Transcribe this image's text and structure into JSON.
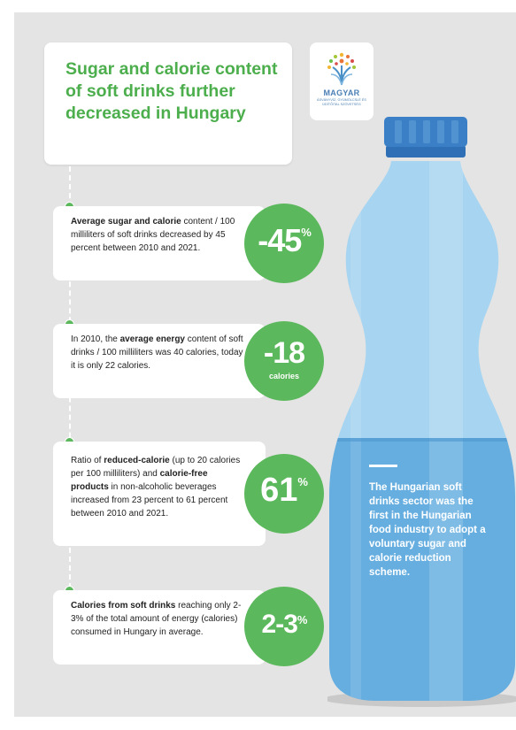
{
  "title": "Sugar and calorie content of soft drinks further decreased in Hungary",
  "logo": {
    "name": "MAGYAR",
    "subtitle": "ÁSVÁNYVÍZ, GYÜMÖLCSLÉ ÉS ÜDÍTŐITAL SZÖVETSÉG"
  },
  "stats": [
    {
      "lead_bold": "Average sugar and calorie",
      "text": " content / 100 milliliters of soft drinks decreased by 45 percent between 2010 and 2021.",
      "value": "-45",
      "unit": "%"
    },
    {
      "lead": "In 2010, the ",
      "lead_bold": "average energy",
      "text": " content of soft drinks / 100 milliliters was 40 calories, today it is only 22 calories.",
      "value": "-18",
      "unit": "calories"
    },
    {
      "lead": "Ratio of ",
      "lead_bold": "reduced-calorie",
      "text": " (up to 20 calories per 100 milliliters) and ",
      "bold2": "calorie-free products",
      "text2": " in non-alcoholic beverages increased from 23 percent to 61 percent between 2010 and 2021.",
      "value": "61",
      "unit": "%"
    },
    {
      "lead_bold": "Calories from soft drinks",
      "text": " reaching only 2-3% of the total amount of energy (calories) consumed in Hungary in average.",
      "value": "2-3",
      "unit": "%"
    }
  ],
  "bottle_text": "The Hungarian soft drinks sector was the first in the Hungarian food industry to adopt a voluntary sugar and calorie reduction scheme.",
  "colors": {
    "green": "#5cb85c",
    "title_green": "#4cae4c",
    "bottle_blue": "#8ec8ec",
    "cap_blue": "#2f6fb5",
    "panel_gray": "#e4e4e4"
  }
}
